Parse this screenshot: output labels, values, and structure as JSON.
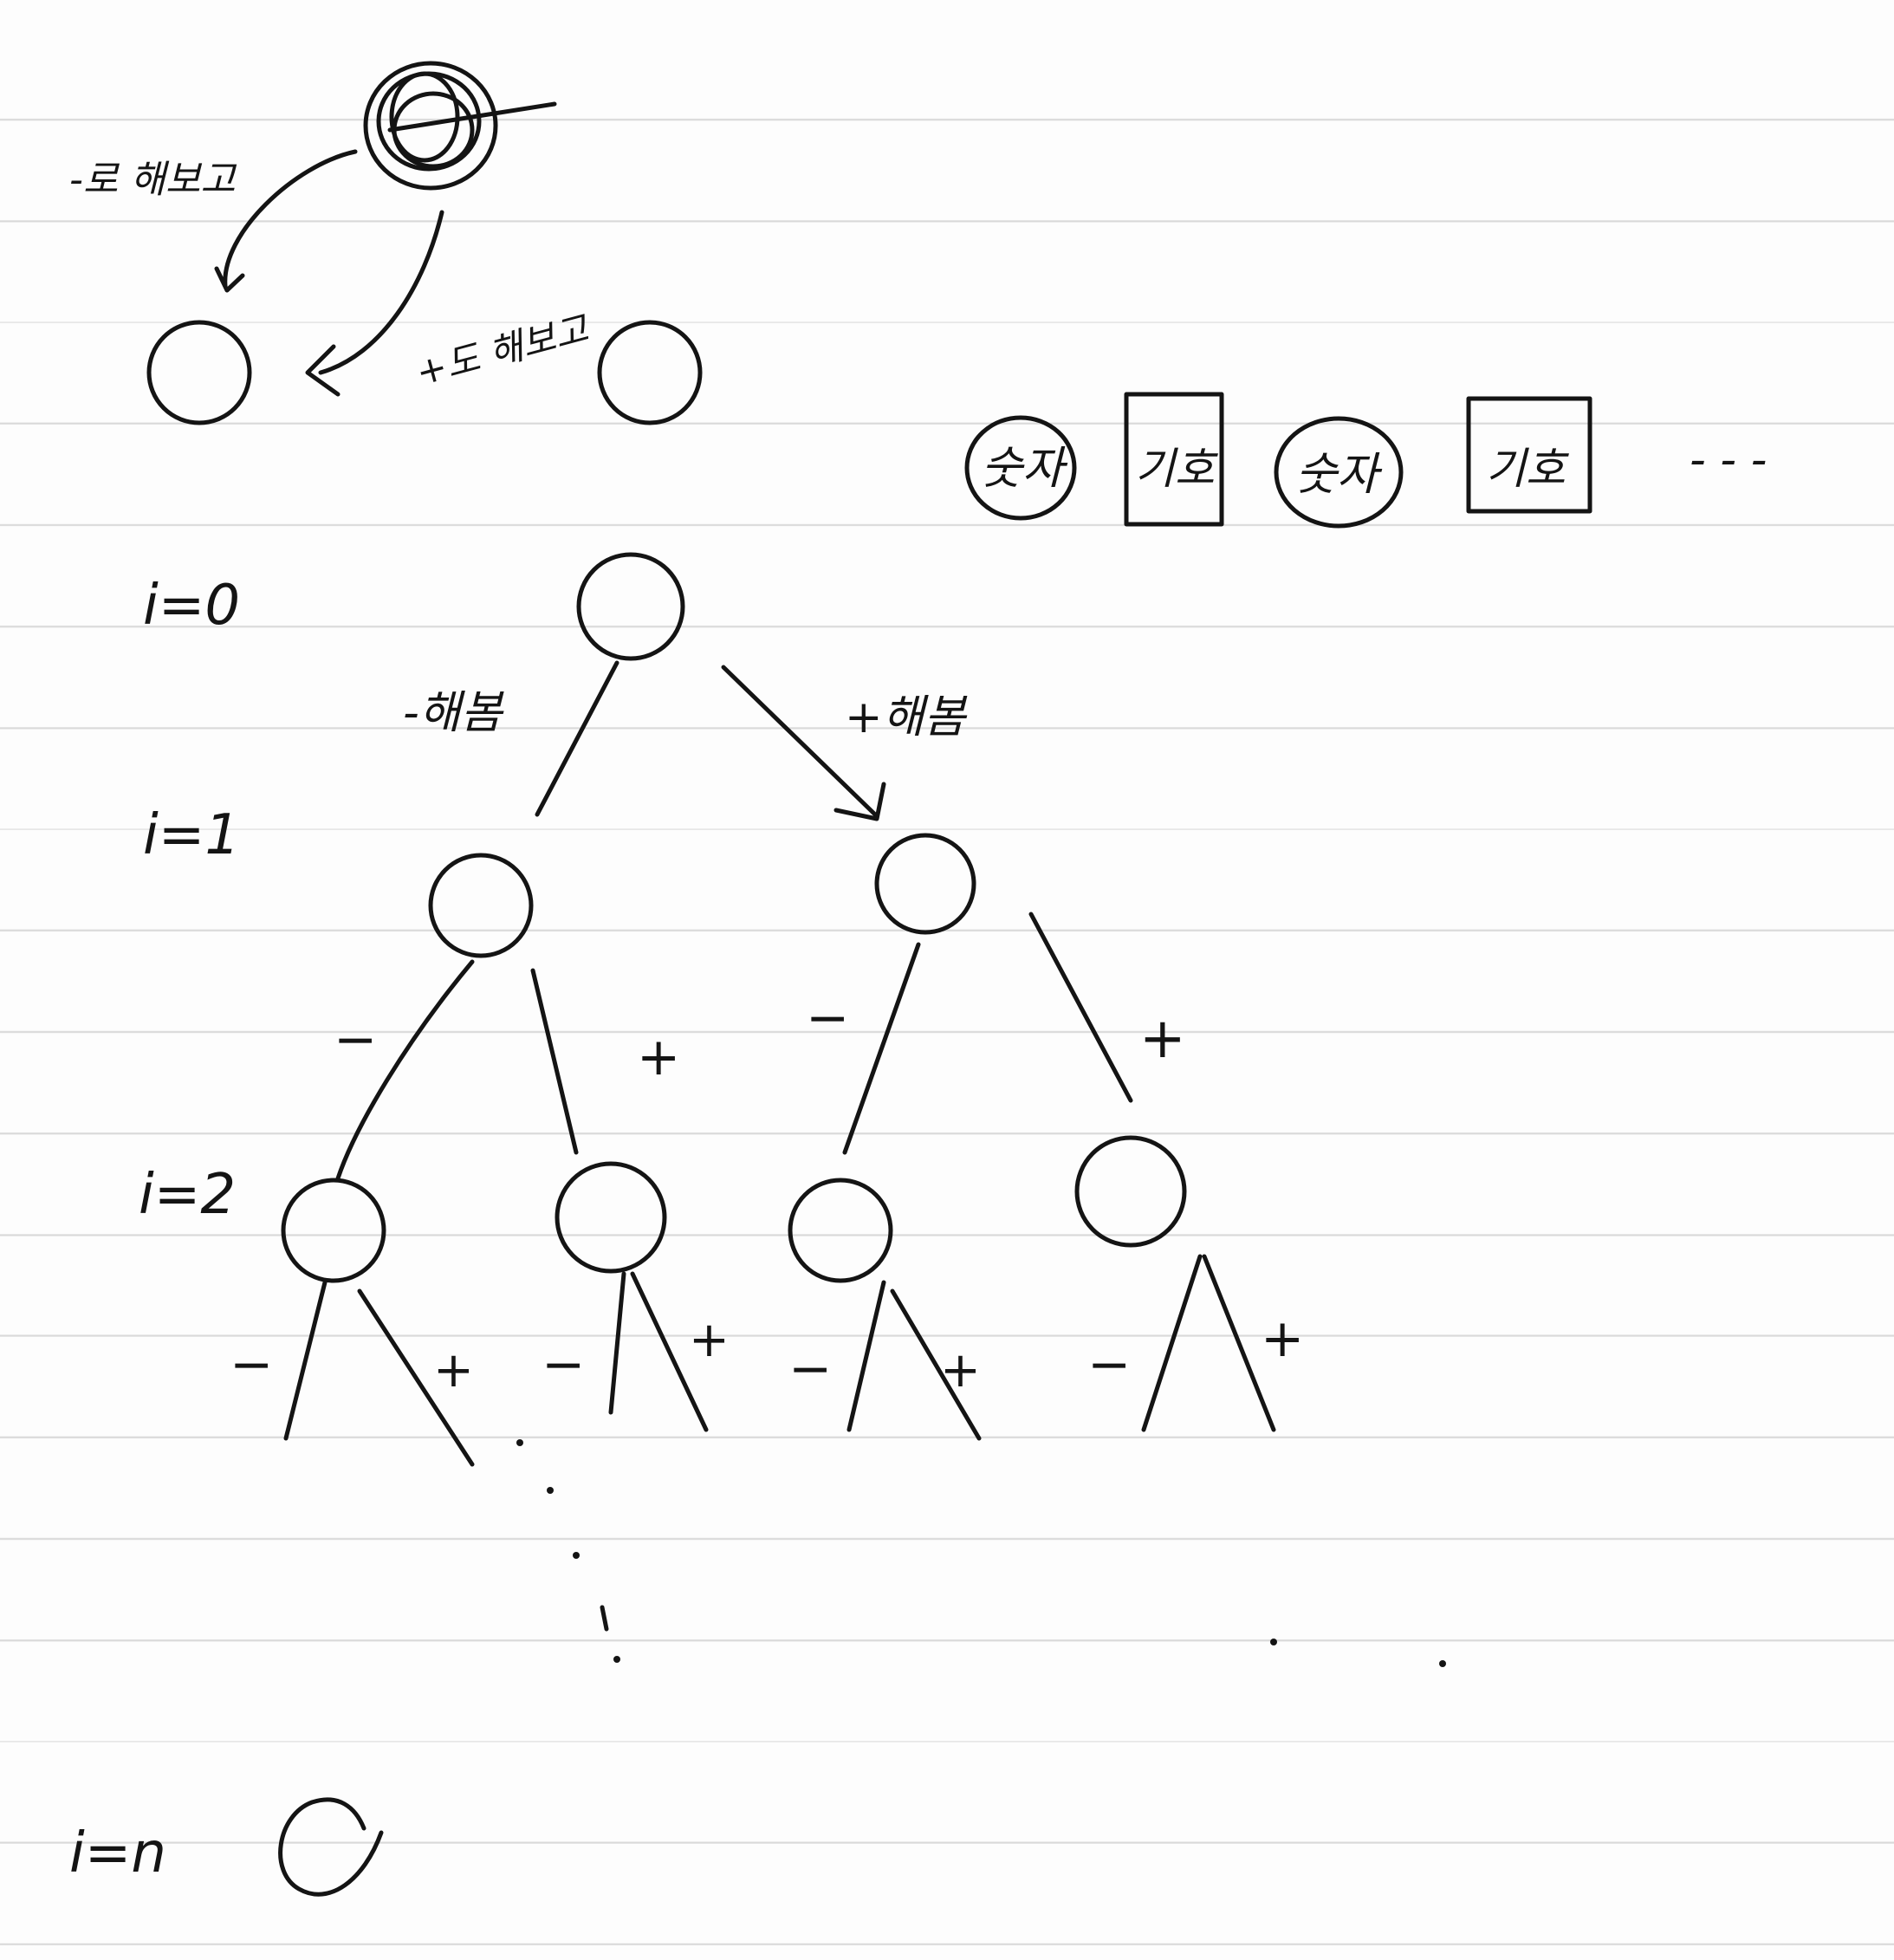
{
  "diagram": {
    "example_labels": {
      "minus_try": "-로 해보고",
      "plus_try": "+도 해보고"
    },
    "legend": {
      "number": "숫자",
      "sign": "기호",
      "ellipsis": "- - -"
    },
    "levels": {
      "i0": "i=0",
      "i1": "i=1",
      "i2": "i=2",
      "in": "i=n"
    },
    "edges": {
      "minus_root": "-해봄",
      "plus_root": "+해봄",
      "minus": "−",
      "plus": "+"
    },
    "colors": {
      "ink": "#141414",
      "paper": "#fdfdfd",
      "rule": "#d9d9d9"
    }
  }
}
